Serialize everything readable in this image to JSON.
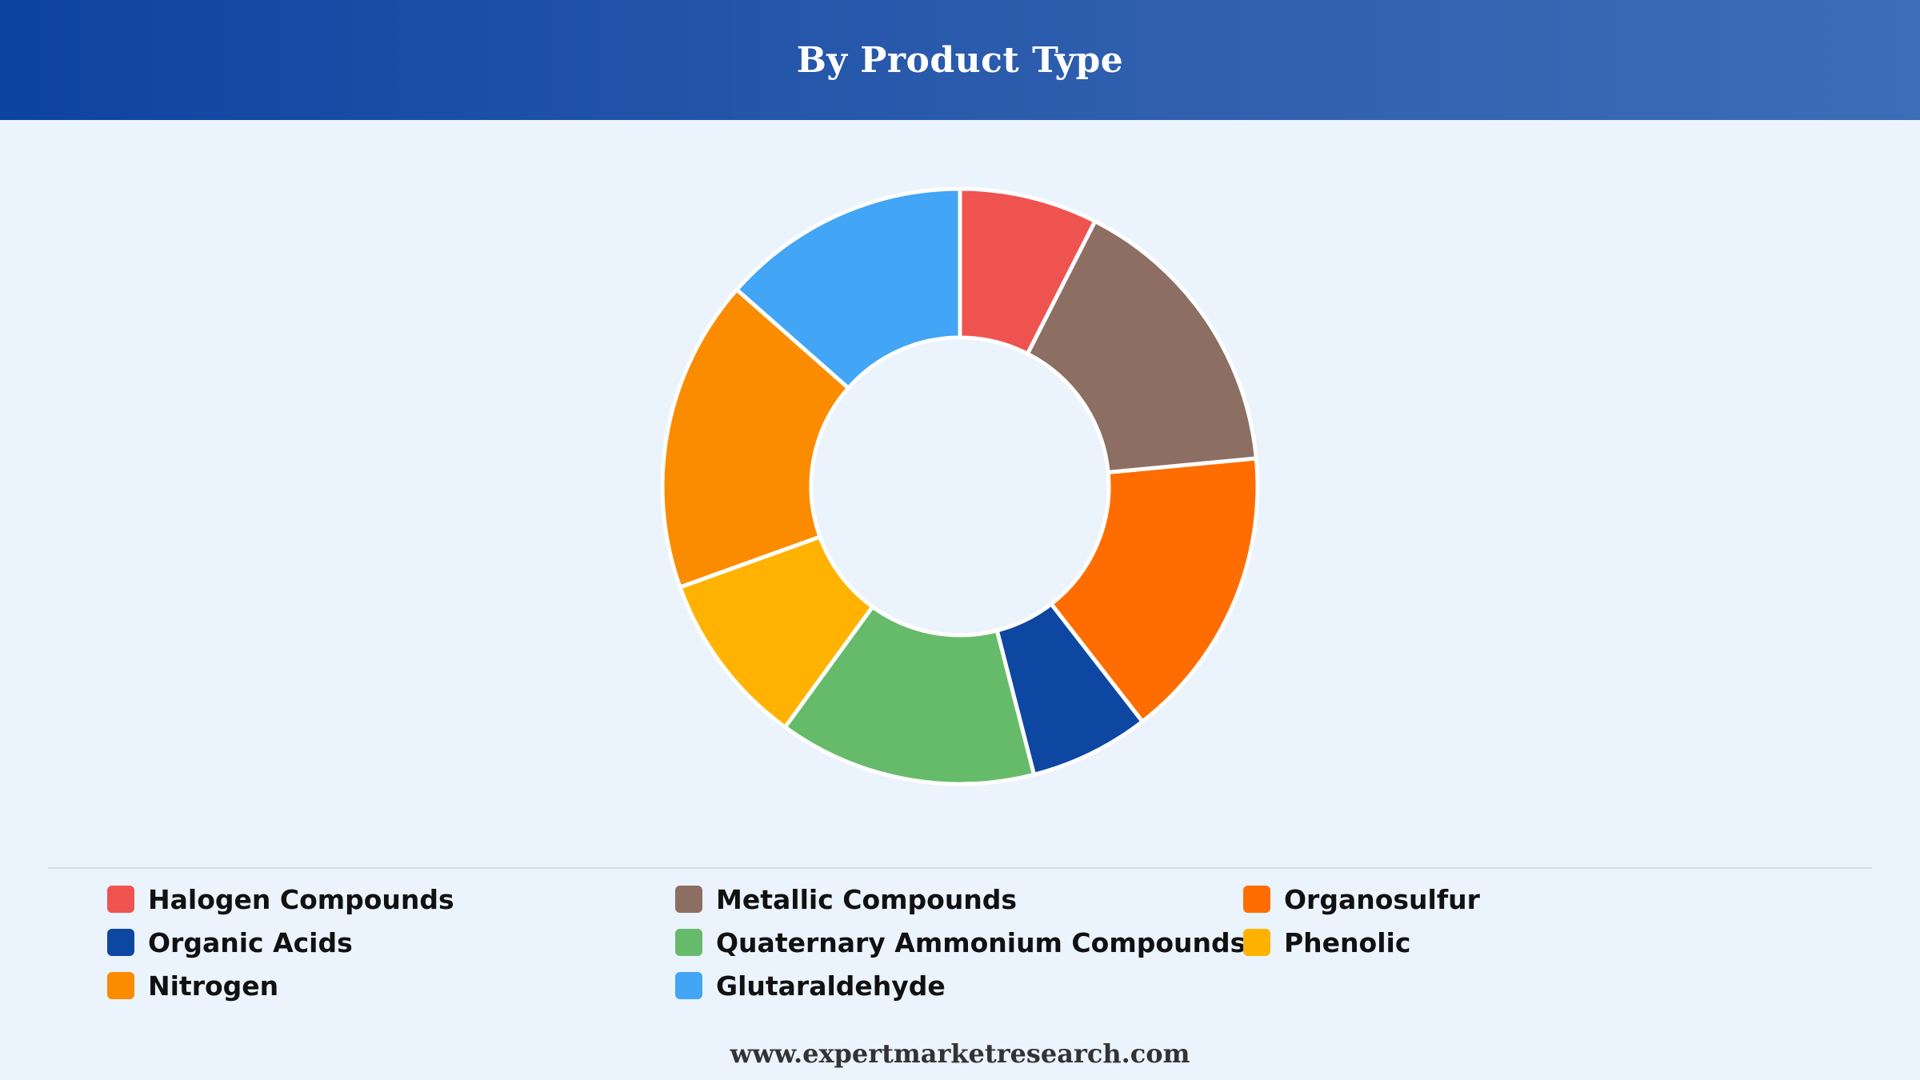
{
  "header": {
    "title": "By Product Type"
  },
  "footer": {
    "website": "www.expertmarketresearch.com"
  },
  "chart_data": {
    "type": "pie",
    "variant": "donut",
    "title": "By Product Type",
    "legend_placement": "bottom",
    "categories": [
      "Halogen Compounds",
      "Metallic Compounds",
      "Organosulfur",
      "Organic Acids",
      "Quaternary Ammonium Compounds",
      "Phenolic",
      "Nitrogen",
      "Glutaraldehyde"
    ],
    "values": [
      7.5,
      16,
      16,
      6.5,
      14,
      9.5,
      17,
      13.5
    ],
    "colors": [
      "#ef5350",
      "#8d6e63",
      "#ff6d00",
      "#0d47a1",
      "#66bb6a",
      "#ffb300",
      "#fb8c00",
      "#42a5f5"
    ]
  }
}
